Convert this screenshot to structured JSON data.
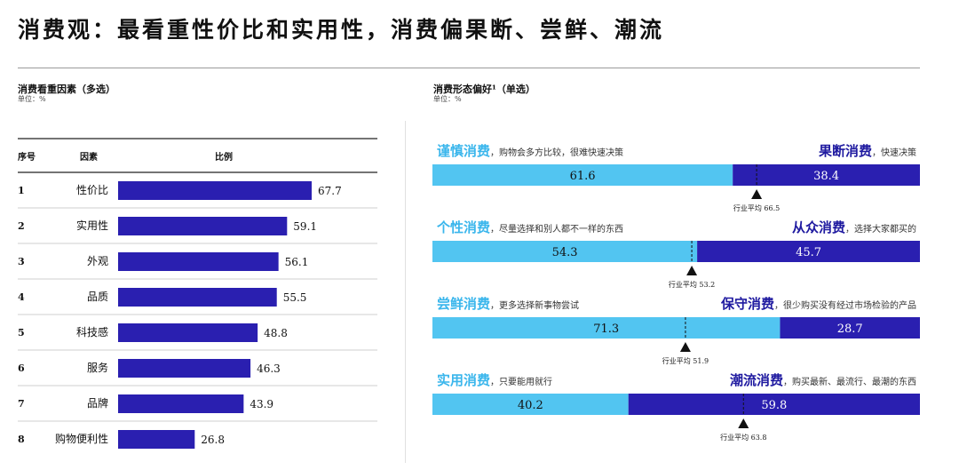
{
  "header": {
    "title": "消费观：最看重性价比和实用性，消费偏果断、尝鲜、潮流"
  },
  "left_section": {
    "title": "消费看重因素（多选）",
    "unit": "单位：%"
  },
  "right_section": {
    "title": "消费形态偏好¹（单选）",
    "unit": "单位：%"
  },
  "chart_data": [
    {
      "type": "bar",
      "orientation": "horizontal",
      "columns": [
        "序号",
        "因素",
        "比例"
      ],
      "rows": [
        "1",
        "2",
        "3",
        "4",
        "5",
        "6",
        "7",
        "8"
      ],
      "categories": [
        "性价比",
        "实用性",
        "外观",
        "品质",
        "科技感",
        "服务",
        "品牌",
        "购物便利性"
      ],
      "values": [
        67.7,
        59.1,
        56.1,
        55.5,
        48.8,
        46.3,
        43.9,
        26.8
      ],
      "value_labels": [
        "67.7",
        "59.1",
        "56.1",
        "55.5",
        "48.8",
        "46.3",
        "43.9",
        "26.8"
      ],
      "bar_color": "#2a1fb0",
      "xlim": [
        0,
        100
      ]
    },
    {
      "type": "bar",
      "orientation": "horizontal-stacked",
      "xlim": [
        0,
        100
      ],
      "colors": {
        "left": "#52c5f1",
        "right": "#2a1fb0",
        "left_label": "#3ab6ec",
        "right_label": "#1f1aa0"
      },
      "pairs": [
        {
          "left_name": "谨慎消费",
          "left_desc": "，购物会多方比较，很难快速决策",
          "right_name": "果断消费",
          "right_desc": "，快速决策",
          "left_value": 61.6,
          "right_value": 38.4,
          "left_label": "61.6",
          "right_label": "38.4",
          "avg_value": 66.5,
          "avg_text": "行业平均 66.5"
        },
        {
          "left_name": "个性消费",
          "left_desc": "，尽量选择和别人都不一样的东西",
          "right_name": "从众消费",
          "right_desc": "，选择大家都买的",
          "left_value": 54.3,
          "right_value": 45.7,
          "left_label": "54.3",
          "right_label": "45.7",
          "avg_value": 53.2,
          "avg_text": "行业平均 53.2"
        },
        {
          "left_name": "尝鲜消费",
          "left_desc": "，更多选择新事物尝试",
          "right_name": "保守消费",
          "right_desc": "，很少购买没有经过市场检验的产品",
          "left_value": 71.3,
          "right_value": 28.7,
          "left_label": "71.3",
          "right_label": "28.7",
          "avg_value": 51.9,
          "avg_text": "行业平均 51.9"
        },
        {
          "left_name": "实用消费",
          "left_desc": "，只要能用就行",
          "right_name": "潮流消费",
          "right_desc": "，购买最新、最流行、最潮的东西",
          "left_value": 40.2,
          "right_value": 59.8,
          "left_label": "40.2",
          "right_label": "59.8",
          "avg_value": 63.8,
          "avg_text": "行业平均 63.8"
        }
      ]
    }
  ]
}
